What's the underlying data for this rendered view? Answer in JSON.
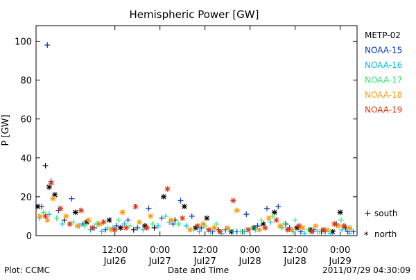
{
  "chart_data": {
    "type": "scatter",
    "title": "Hemispheric Power [GW]",
    "ylabel": "P [GW]",
    "xlabel": "Date and Time",
    "footer_left": "Plot: CCMC",
    "footer_right": "2011/07/29 04:30:09",
    "xlim": [
      "2011-07-25T15:00",
      "2011-07-29T04:30"
    ],
    "ylim": [
      0,
      108
    ],
    "yticks": [
      0,
      20,
      40,
      60,
      80,
      100
    ],
    "xticks": [
      {
        "t": "2011-07-26T12:00",
        "time": "12:00",
        "date": "Jul26"
      },
      {
        "t": "2011-07-27T00:00",
        "time": "0:00",
        "date": "Jul27"
      },
      {
        "t": "2011-07-27T12:00",
        "time": "12:00",
        "date": "Jul27"
      },
      {
        "t": "2011-07-28T00:00",
        "time": "0:00",
        "date": "Jul28"
      },
      {
        "t": "2011-07-28T12:00",
        "time": "12:00",
        "date": "Jul28"
      },
      {
        "t": "2011-07-29T00:00",
        "time": "0:00",
        "date": "Jul29"
      }
    ],
    "markers": {
      "south_symbol": "+",
      "south_label": "south",
      "north_symbol": "*",
      "north_label": "north"
    },
    "series": [
      {
        "name": "METP-02",
        "color": "#000000",
        "points": [
          [
            "2011-07-25T15:30",
            15,
            "n"
          ],
          [
            "2011-07-25T17:30",
            36,
            "s"
          ],
          [
            "2011-07-25T18:30",
            25,
            "n"
          ],
          [
            "2011-07-25T20:00",
            21,
            "n"
          ],
          [
            "2011-07-25T22:30",
            8,
            "s"
          ],
          [
            "2011-07-26T01:30",
            12,
            "n"
          ],
          [
            "2011-07-26T04:30",
            7,
            "n"
          ],
          [
            "2011-07-26T07:30",
            6,
            "s"
          ],
          [
            "2011-07-26T10:30",
            8,
            "n"
          ],
          [
            "2011-07-26T13:30",
            4,
            "n"
          ],
          [
            "2011-07-26T17:00",
            3,
            "s"
          ],
          [
            "2011-07-26T20:00",
            5,
            "n"
          ],
          [
            "2011-07-26T22:30",
            4,
            "s"
          ],
          [
            "2011-07-27T01:00",
            20,
            "n"
          ],
          [
            "2011-07-27T04:00",
            8,
            "s"
          ],
          [
            "2011-07-27T06:30",
            15,
            "n"
          ],
          [
            "2011-07-27T09:30",
            4,
            "n"
          ],
          [
            "2011-07-27T12:30",
            9,
            "n"
          ],
          [
            "2011-07-27T15:30",
            3,
            "s"
          ],
          [
            "2011-07-27T19:00",
            2,
            "n"
          ],
          [
            "2011-07-27T22:00",
            2,
            "s"
          ],
          [
            "2011-07-28T01:00",
            4,
            "n"
          ],
          [
            "2011-07-28T03:30",
            6,
            "n"
          ],
          [
            "2011-07-28T06:30",
            12,
            "n"
          ],
          [
            "2011-07-28T09:30",
            6,
            "s"
          ],
          [
            "2011-07-28T12:30",
            4,
            "n"
          ],
          [
            "2011-07-28T16:00",
            3,
            "n"
          ],
          [
            "2011-07-28T19:00",
            2,
            "s"
          ],
          [
            "2011-07-28T22:00",
            2,
            "n"
          ],
          [
            "2011-07-29T00:00",
            12,
            "n"
          ],
          [
            "2011-07-29T01:30",
            4,
            "s"
          ]
        ]
      },
      {
        "name": "NOAA-15",
        "color": "#0033cc",
        "points": [
          [
            "2011-07-25T16:30",
            15,
            "s"
          ],
          [
            "2011-07-25T18:00",
            98,
            "s"
          ],
          [
            "2011-07-25T19:00",
            28,
            "s"
          ],
          [
            "2011-07-25T21:00",
            13,
            "s"
          ],
          [
            "2011-07-26T00:30",
            19,
            "s"
          ],
          [
            "2011-07-26T03:30",
            6,
            "s"
          ],
          [
            "2011-07-26T06:30",
            4,
            "s"
          ],
          [
            "2011-07-26T09:30",
            3,
            "s"
          ],
          [
            "2011-07-26T12:30",
            5,
            "s"
          ],
          [
            "2011-07-26T15:30",
            8,
            "s"
          ],
          [
            "2011-07-26T18:00",
            4,
            "s"
          ],
          [
            "2011-07-26T21:00",
            14,
            "s"
          ],
          [
            "2011-07-27T00:30",
            9,
            "s"
          ],
          [
            "2011-07-27T03:30",
            6,
            "s"
          ],
          [
            "2011-07-27T05:30",
            18,
            "s"
          ],
          [
            "2011-07-27T08:30",
            10,
            "s"
          ],
          [
            "2011-07-27T11:00",
            4,
            "s"
          ],
          [
            "2011-07-27T14:00",
            2,
            "s"
          ],
          [
            "2011-07-27T17:30",
            3,
            "s"
          ],
          [
            "2011-07-27T20:30",
            2,
            "s"
          ],
          [
            "2011-07-27T23:00",
            11,
            "s"
          ],
          [
            "2011-07-28T02:00",
            5,
            "s"
          ],
          [
            "2011-07-28T04:30",
            14,
            "s"
          ],
          [
            "2011-07-28T07:30",
            15,
            "s"
          ],
          [
            "2011-07-28T10:30",
            4,
            "s"
          ],
          [
            "2011-07-28T13:30",
            2,
            "s"
          ],
          [
            "2011-07-28T17:00",
            3,
            "s"
          ],
          [
            "2011-07-28T20:00",
            2,
            "s"
          ],
          [
            "2011-07-28T23:00",
            6,
            "s"
          ],
          [
            "2011-07-29T02:00",
            2,
            "s"
          ],
          [
            "2011-07-29T03:30",
            2,
            "s"
          ]
        ]
      },
      {
        "name": "NOAA-16",
        "color": "#00bbdd",
        "points": [
          [
            "2011-07-25T16:00",
            9,
            "s"
          ],
          [
            "2011-07-25T18:30",
            11,
            "s"
          ],
          [
            "2011-07-25T22:00",
            6,
            "s"
          ],
          [
            "2011-07-26T02:30",
            5,
            "s"
          ],
          [
            "2011-07-26T05:30",
            3,
            "s"
          ],
          [
            "2011-07-26T08:30",
            2,
            "s"
          ],
          [
            "2011-07-26T11:30",
            4,
            "s"
          ],
          [
            "2011-07-26T14:30",
            6,
            "s"
          ],
          [
            "2011-07-26T19:30",
            3,
            "s"
          ],
          [
            "2011-07-26T23:30",
            5,
            "s"
          ],
          [
            "2011-07-27T02:30",
            7,
            "s"
          ],
          [
            "2011-07-27T07:00",
            5,
            "s"
          ],
          [
            "2011-07-27T10:30",
            2,
            "s"
          ],
          [
            "2011-07-27T13:30",
            2,
            "s"
          ],
          [
            "2011-07-27T16:30",
            1,
            "s"
          ],
          [
            "2011-07-27T19:30",
            2,
            "s"
          ],
          [
            "2011-07-27T22:30",
            2,
            "s"
          ],
          [
            "2011-07-28T01:30",
            3,
            "s"
          ],
          [
            "2011-07-28T05:30",
            7,
            "s"
          ],
          [
            "2011-07-28T08:30",
            4,
            "s"
          ],
          [
            "2011-07-28T11:30",
            2,
            "s"
          ],
          [
            "2011-07-28T14:30",
            1,
            "s"
          ],
          [
            "2011-07-28T18:00",
            2,
            "s"
          ],
          [
            "2011-07-28T21:30",
            1,
            "s"
          ],
          [
            "2011-07-29T00:30",
            3,
            "s"
          ],
          [
            "2011-07-29T02:30",
            1,
            "s"
          ]
        ]
      },
      {
        "name": "NOAA-17",
        "color": "#22ee66",
        "points": [
          [
            "2011-07-25T17:00",
            12,
            "s"
          ],
          [
            "2011-07-25T20:30",
            9,
            "s"
          ],
          [
            "2011-07-26T01:00",
            7,
            "s"
          ],
          [
            "2011-07-26T04:00",
            5,
            "s"
          ],
          [
            "2011-07-26T07:00",
            6,
            "s"
          ],
          [
            "2011-07-26T10:00",
            4,
            "s"
          ],
          [
            "2011-07-26T13:00",
            8,
            "s"
          ],
          [
            "2011-07-26T16:00",
            5,
            "s"
          ],
          [
            "2011-07-26T22:00",
            6,
            "s"
          ],
          [
            "2011-07-27T01:30",
            10,
            "s"
          ],
          [
            "2011-07-27T05:00",
            6,
            "s"
          ],
          [
            "2011-07-27T09:00",
            3,
            "s"
          ],
          [
            "2011-07-27T12:00",
            5,
            "s"
          ],
          [
            "2011-07-27T15:00",
            6,
            "s"
          ],
          [
            "2011-07-27T18:30",
            3,
            "s"
          ],
          [
            "2011-07-27T21:30",
            2,
            "s"
          ],
          [
            "2011-07-28T00:30",
            4,
            "s"
          ],
          [
            "2011-07-28T03:00",
            8,
            "s"
          ],
          [
            "2011-07-28T06:00",
            10,
            "s"
          ],
          [
            "2011-07-28T09:00",
            6,
            "s"
          ],
          [
            "2011-07-28T12:00",
            8,
            "s"
          ],
          [
            "2011-07-28T15:30",
            3,
            "s"
          ],
          [
            "2011-07-28T18:30",
            2,
            "s"
          ],
          [
            "2011-07-28T21:00",
            2,
            "s"
          ],
          [
            "2011-07-29T00:15",
            8,
            "s"
          ],
          [
            "2011-07-29T03:00",
            3,
            "s"
          ]
        ]
      },
      {
        "name": "NOAA-18",
        "color": "#ff9900",
        "points": [
          [
            "2011-07-25T16:00",
            10,
            "n"
          ],
          [
            "2011-07-25T18:00",
            8,
            "n"
          ],
          [
            "2011-07-25T19:30",
            19,
            "n"
          ],
          [
            "2011-07-25T23:00",
            10,
            "n"
          ],
          [
            "2011-07-26T02:00",
            5,
            "n"
          ],
          [
            "2011-07-26T05:00",
            8,
            "n"
          ],
          [
            "2011-07-26T08:00",
            6,
            "n"
          ],
          [
            "2011-07-26T11:00",
            3,
            "n"
          ],
          [
            "2011-07-26T14:00",
            12,
            "n"
          ],
          [
            "2011-07-26T18:30",
            7,
            "n"
          ],
          [
            "2011-07-26T21:30",
            10,
            "n"
          ],
          [
            "2011-07-27T03:00",
            8,
            "n"
          ],
          [
            "2011-07-27T08:00",
            3,
            "n"
          ],
          [
            "2011-07-27T11:30",
            6,
            "n"
          ],
          [
            "2011-07-27T14:30",
            4,
            "n"
          ],
          [
            "2011-07-27T18:00",
            4,
            "n"
          ],
          [
            "2011-07-27T20:30",
            13,
            "n"
          ],
          [
            "2011-07-28T02:30",
            3,
            "n"
          ],
          [
            "2011-07-28T05:00",
            9,
            "n"
          ],
          [
            "2011-07-28T08:00",
            5,
            "n"
          ],
          [
            "2011-07-28T11:00",
            3,
            "n"
          ],
          [
            "2011-07-28T14:00",
            4,
            "n"
          ],
          [
            "2011-07-28T17:30",
            5,
            "n"
          ],
          [
            "2011-07-28T20:30",
            3,
            "n"
          ],
          [
            "2011-07-28T23:30",
            5,
            "n"
          ],
          [
            "2011-07-29T02:30",
            4,
            "n"
          ]
        ]
      },
      {
        "name": "NOAA-19",
        "color": "#dd3311",
        "points": [
          [
            "2011-07-25T17:30",
            10,
            "n"
          ],
          [
            "2011-07-25T19:00",
            27,
            "n"
          ],
          [
            "2011-07-25T21:30",
            14,
            "n"
          ],
          [
            "2011-07-26T00:00",
            6,
            "n"
          ],
          [
            "2011-07-26T03:00",
            13,
            "n"
          ],
          [
            "2011-07-26T06:00",
            4,
            "n"
          ],
          [
            "2011-07-26T09:00",
            7,
            "n"
          ],
          [
            "2011-07-26T12:00",
            3,
            "n"
          ],
          [
            "2011-07-26T15:00",
            4,
            "n"
          ],
          [
            "2011-07-26T17:30",
            15,
            "n"
          ],
          [
            "2011-07-26T20:30",
            4,
            "n"
          ],
          [
            "2011-07-27T02:00",
            24,
            "n"
          ],
          [
            "2011-07-27T06:00",
            9,
            "n"
          ],
          [
            "2011-07-27T10:00",
            5,
            "n"
          ],
          [
            "2011-07-27T13:00",
            3,
            "n"
          ],
          [
            "2011-07-27T16:00",
            2,
            "n"
          ],
          [
            "2011-07-27T19:30",
            18,
            "n"
          ],
          [
            "2011-07-27T23:30",
            3,
            "n"
          ],
          [
            "2011-07-28T04:00",
            4,
            "n"
          ],
          [
            "2011-07-28T07:00",
            8,
            "n"
          ],
          [
            "2011-07-28T10:00",
            3,
            "n"
          ],
          [
            "2011-07-28T13:00",
            5,
            "n"
          ],
          [
            "2011-07-28T16:30",
            2,
            "n"
          ],
          [
            "2011-07-28T19:30",
            3,
            "n"
          ],
          [
            "2011-07-28T22:30",
            6,
            "n"
          ],
          [
            "2011-07-29T01:00",
            5,
            "n"
          ]
        ]
      }
    ]
  }
}
